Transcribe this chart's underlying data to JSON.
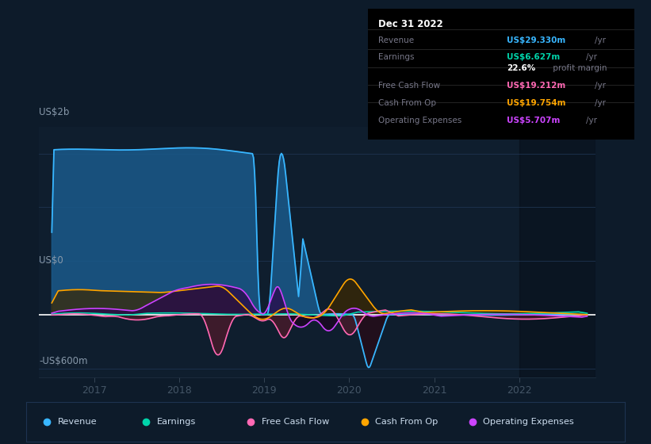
{
  "bg_color": "#0d1b2a",
  "plot_bg_color": "#0f1e2e",
  "grid_color": "#1e3350",
  "zero_line_color": "#ffffff",
  "ylabel_top": "US$2b",
  "ylabel_bottom": "-US$600m",
  "ylabel_zero": "US$0",
  "x_labels": [
    "2017",
    "2018",
    "2019",
    "2020",
    "2021",
    "2022"
  ],
  "legend": [
    {
      "label": "Revenue",
      "color": "#38b6ff"
    },
    {
      "label": "Earnings",
      "color": "#00d4aa"
    },
    {
      "label": "Free Cash Flow",
      "color": "#ff69b4"
    },
    {
      "label": "Cash From Op",
      "color": "#ffa500"
    },
    {
      "label": "Operating Expenses",
      "color": "#cc44ff"
    }
  ],
  "info_box_title": "Dec 31 2022",
  "info_rows": [
    {
      "label": "Revenue",
      "value": "US$29.330m",
      "unit": "/yr",
      "value_color": "#38b6ff"
    },
    {
      "label": "Earnings",
      "value": "US$6.627m",
      "unit": "/yr",
      "value_color": "#00d4aa"
    },
    {
      "label": "",
      "value": "22.6%",
      "unit": " profit margin",
      "value_color": "#ffffff"
    },
    {
      "label": "Free Cash Flow",
      "value": "US$19.212m",
      "unit": "/yr",
      "value_color": "#ff69b4"
    },
    {
      "label": "Cash From Op",
      "value": "US$19.754m",
      "unit": "/yr",
      "value_color": "#ffa500"
    },
    {
      "label": "Operating Expenses",
      "value": "US$5.707m",
      "unit": "/yr",
      "value_color": "#cc44ff"
    }
  ],
  "ylim": [
    -700,
    2100
  ],
  "xlim_start": 2016.35,
  "xlim_end": 2022.9,
  "revenue_fill_color": "#1a5a8a",
  "revenue_line_color": "#38b6ff",
  "earnings_fill_pos": "#004d3d",
  "earnings_fill_neg": "#002d1d",
  "earnings_line_color": "#00d4aa",
  "fcf_fill_neg": "#4d1a2a",
  "fcf_line_color": "#ff69b4",
  "cashop_fill_pos": "#3d2800",
  "cashop_line_color": "#ffa500",
  "opex_fill_pos": "#2a0a4a",
  "opex_fill_neg": "#1a0520",
  "opex_line_color": "#cc44ff"
}
